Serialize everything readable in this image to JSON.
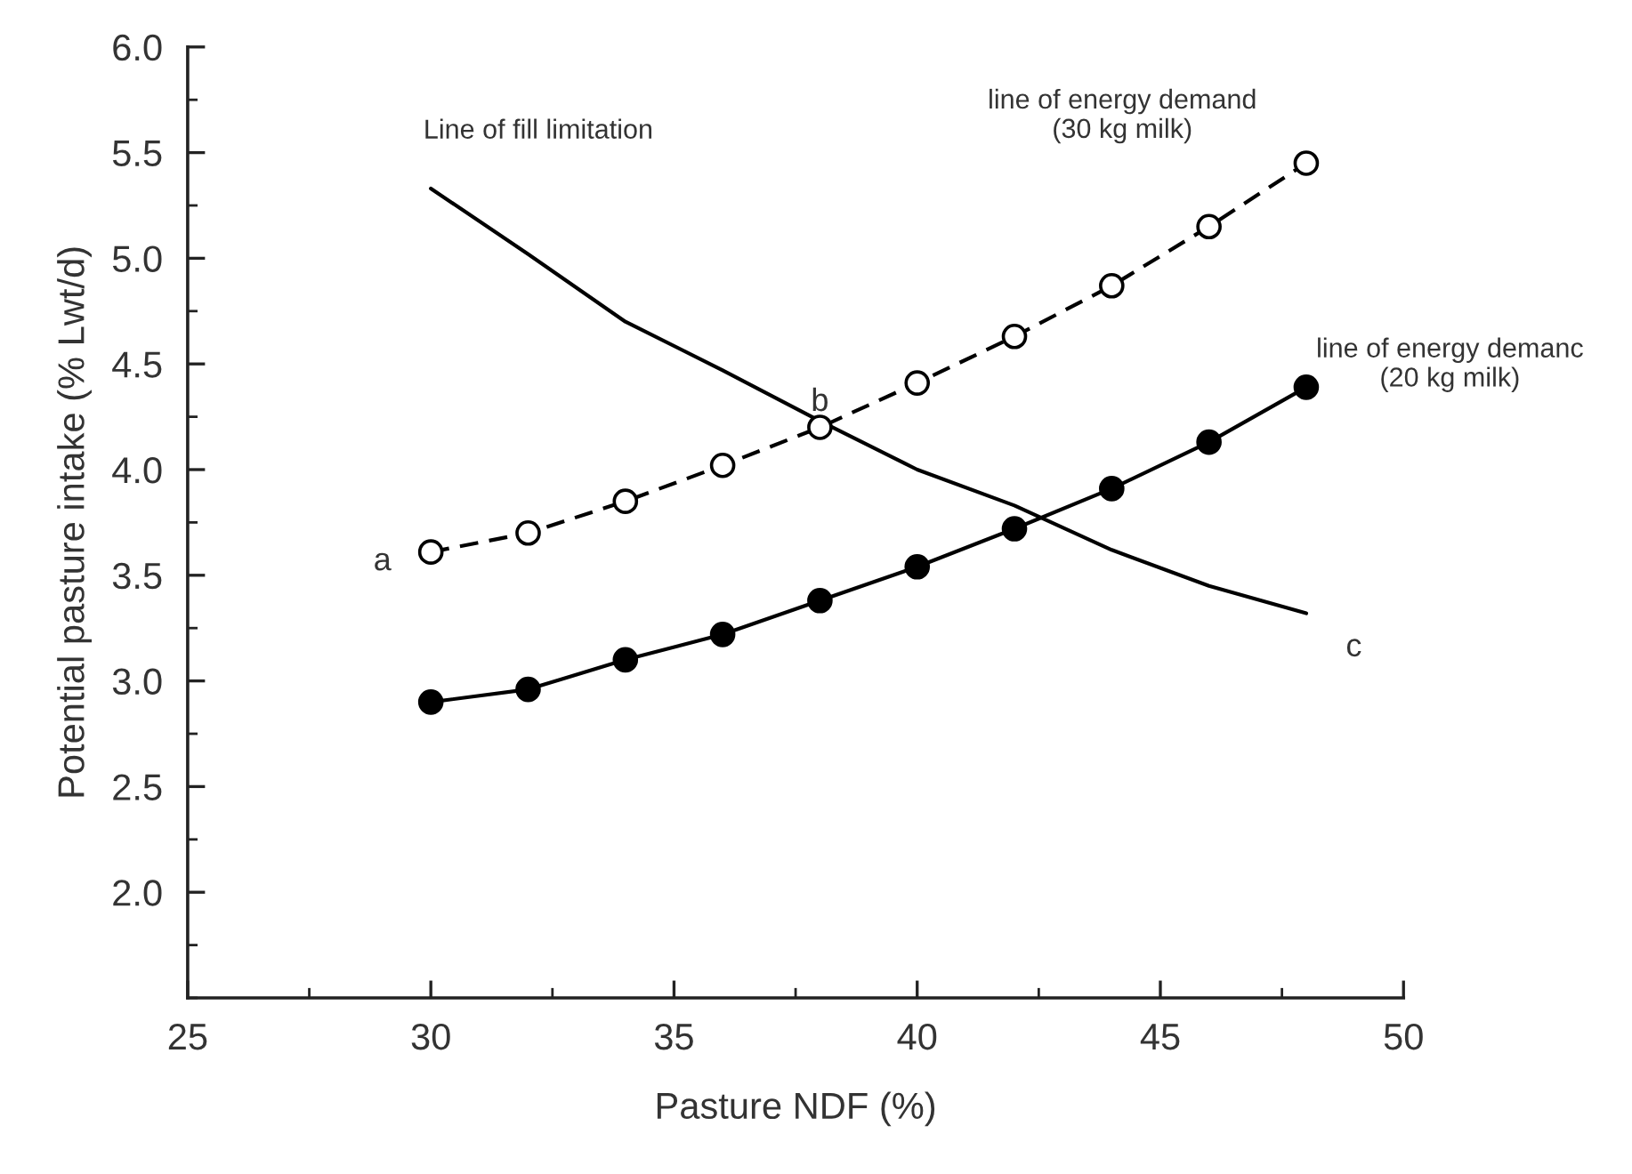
{
  "chart_data": {
    "type": "line",
    "xlabel": "Pasture NDF (%)",
    "ylabel": "Potential pasture intake (% Lwt/d)",
    "xlim": [
      25,
      50
    ],
    "xticks": [
      25,
      30,
      35,
      40,
      45,
      50
    ],
    "ylim": [
      1.5,
      6.0
    ],
    "yticks": [
      {
        "value": 2.0,
        "label": "2.0"
      },
      {
        "value": 2.5,
        "label": "2.5"
      },
      {
        "value": 3.0,
        "label": "3.0"
      },
      {
        "value": 3.5,
        "label": "3.5"
      },
      {
        "value": 4.0,
        "label": "4.0"
      },
      {
        "value": 4.5,
        "label": "4.5"
      },
      {
        "value": 5.0,
        "label": "5.0"
      },
      {
        "value": 5.5,
        "label": "5.5"
      },
      {
        "value": 6.0,
        "label": "6.0"
      }
    ],
    "x": [
      30,
      32,
      34,
      36,
      38,
      40,
      42,
      44,
      46,
      48
    ],
    "series": [
      {
        "name": "Line of fill limitation",
        "color": "#000000",
        "marker": "none",
        "line_style": "solid",
        "values": [
          5.33,
          5.02,
          4.7,
          4.47,
          4.23,
          4.0,
          3.83,
          3.62,
          3.45,
          3.32
        ]
      },
      {
        "name": "line of energy demand\n(30 kg milk)",
        "color": "#000000",
        "marker": "circle",
        "line_style": "dashed",
        "values": [
          3.61,
          3.7,
          3.85,
          4.02,
          4.2,
          4.41,
          4.63,
          4.87,
          5.15,
          5.45
        ]
      },
      {
        "name": "line of energy demanc\n(20 kg milk)",
        "color": "#000000",
        "marker": "circle",
        "line_style": "solid",
        "values": [
          2.9,
          2.96,
          3.1,
          3.22,
          3.38,
          3.54,
          3.72,
          3.91,
          4.13,
          4.39
        ]
      }
    ],
    "annotations": [
      {
        "text": "a",
        "x": 30,
        "y": 3.61
      },
      {
        "text": "b",
        "x": 38,
        "y": 4.2
      },
      {
        "text": "c",
        "x": 48,
        "y": 3.32
      }
    ],
    "grid": false,
    "legend": false
  }
}
